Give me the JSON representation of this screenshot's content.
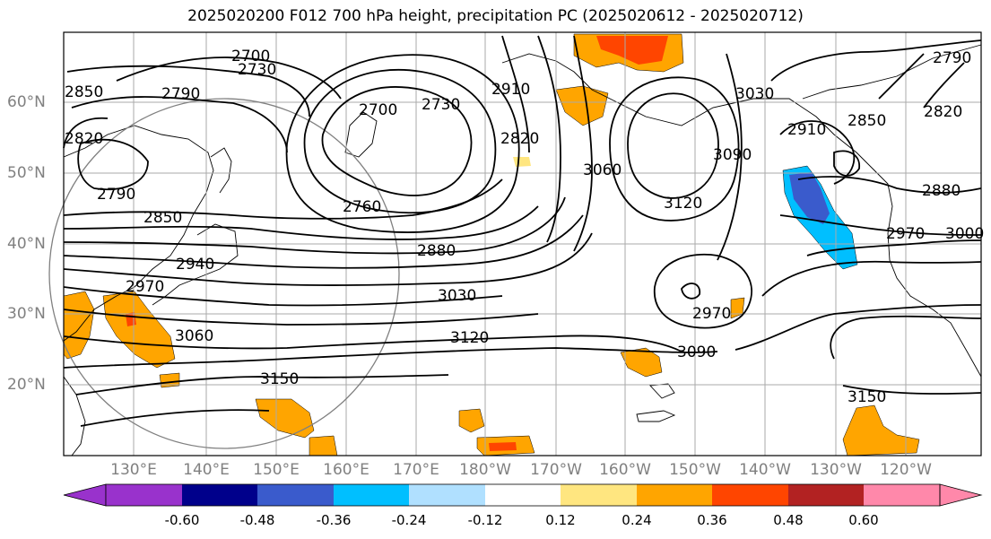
{
  "title": "2025020200 F012 700 hPa height, precipitation PC (2025020612 - 2025020712)",
  "latitude_labels": [
    "60°N",
    "50°N",
    "40°N",
    "30°N",
    "20°N"
  ],
  "longitude_labels": [
    "130°E",
    "140°E",
    "150°E",
    "160°E",
    "170°E",
    "180°W",
    "170°W",
    "160°W",
    "150°W",
    "140°W",
    "130°W",
    "120°W"
  ],
  "contour_labels": [
    "2700",
    "2730",
    "2790",
    "2850",
    "2820",
    "2790",
    "2850",
    "2940",
    "2970",
    "3060",
    "3150",
    "2700",
    "2730",
    "2760",
    "2880",
    "3030",
    "3120",
    "2910",
    "2820",
    "3060",
    "3120",
    "3090",
    "3030",
    "2970",
    "3090",
    "2910",
    "2850",
    "2820",
    "2790",
    "2880",
    "2970",
    "3000",
    "3150"
  ],
  "colorbar": {
    "ticks": [
      "-0.60",
      "-0.48",
      "-0.36",
      "-0.24",
      "-0.12",
      "0.12",
      "0.24",
      "0.36",
      "0.48",
      "0.60"
    ],
    "colors": [
      "#9932cc",
      "#00008b",
      "#3a5bcc",
      "#00bfff",
      "#b0e0ff",
      "#ffffff",
      "#ffe680",
      "#ffa500",
      "#ff4500",
      "#b22222",
      "#ff88aa"
    ]
  },
  "colors": {
    "positive_light": "#ffa500",
    "positive_strong": "#ff4500",
    "negative_light": "#00bfff",
    "negative_strong": "#3a5bcc",
    "contour": "#000000",
    "grid": "#aaaaaa",
    "circle": "#808080"
  }
}
